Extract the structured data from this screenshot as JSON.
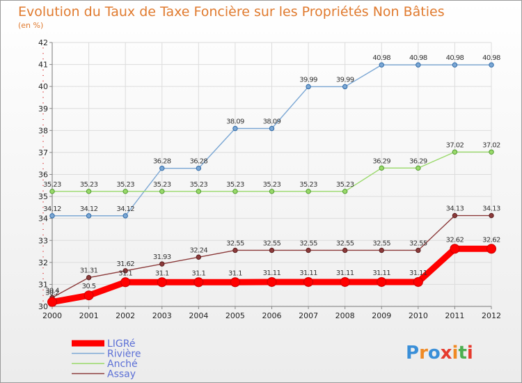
{
  "chart_data": {
    "type": "line",
    "title": "Evolution du Taux de Taxe Foncière sur les Propriétés Non Bâties",
    "subtitle": "(en %)",
    "x": [
      "2000",
      "2001",
      "2002",
      "2003",
      "2004",
      "2005",
      "2006",
      "2007",
      "2008",
      "2009",
      "2010",
      "2011",
      "2012"
    ],
    "ylim": [
      30,
      42
    ],
    "yticks": [
      "30",
      "31",
      "32",
      "33",
      "34",
      "35",
      "36",
      "37",
      "38",
      "39",
      "40",
      "41",
      "42"
    ],
    "series": [
      {
        "name": "LIGRé",
        "color": "#ff0000",
        "values": [
          30.2,
          30.5,
          31.1,
          31.1,
          31.1,
          31.1,
          31.11,
          31.11,
          31.11,
          31.11,
          31.11,
          32.62,
          32.62
        ],
        "labels": [
          "30.2",
          "30.5",
          "31.1",
          "31.1",
          "31.1",
          "31.1",
          "31.11",
          "31.11",
          "31.11",
          "31.11",
          "31.11",
          "32.62",
          "32.62"
        ]
      },
      {
        "name": "Rivière",
        "color": "#7ba7d4",
        "values": [
          34.12,
          34.12,
          34.12,
          36.28,
          36.28,
          38.09,
          38.09,
          39.99,
          39.99,
          40.98,
          40.98,
          40.98,
          40.98
        ],
        "labels": [
          "34.12",
          "34.12",
          "34.12",
          "36.28",
          "36.28",
          "38.09",
          "38.09",
          "39.99",
          "39.99",
          "40.98",
          "40.98",
          "40.98",
          "40.98"
        ]
      },
      {
        "name": "Anché",
        "color": "#99d96a",
        "values": [
          35.23,
          35.23,
          35.23,
          35.23,
          35.23,
          35.23,
          35.23,
          35.23,
          35.23,
          36.29,
          36.29,
          37.02,
          37.02
        ],
        "labels": [
          "35.23",
          "35.23",
          "35.23",
          "35.23",
          "35.23",
          "35.23",
          "35.23",
          "35.23",
          "35.23",
          "36.29",
          "36.29",
          "37.02",
          "37.02"
        ]
      },
      {
        "name": "Assay",
        "color": "#8b3a3a",
        "values": [
          30.4,
          31.31,
          31.62,
          31.93,
          32.24,
          32.55,
          32.55,
          32.55,
          32.55,
          32.55,
          32.55,
          34.13,
          34.13
        ],
        "labels": [
          "30.4",
          "31.31",
          "31.62",
          "31.93",
          "32.24",
          "32.55",
          "32.55",
          "32.55",
          "32.55",
          "32.55",
          "32.55",
          "34.13",
          "34.13"
        ]
      }
    ]
  },
  "branding": {
    "letters": [
      "P",
      "r",
      "o",
      "x",
      "i",
      "t",
      "i"
    ],
    "colors": [
      "#3a8fd8",
      "#f08a24",
      "#3a8fd8",
      "#e63b2e",
      "#f08a24",
      "#4caf50",
      "#e63b2e"
    ]
  }
}
